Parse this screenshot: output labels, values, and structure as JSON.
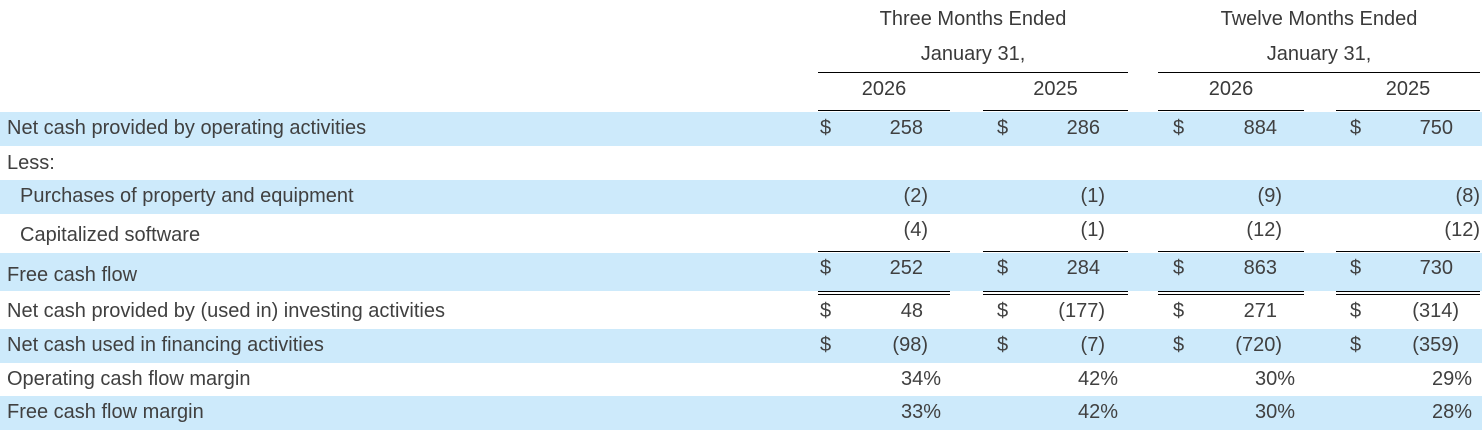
{
  "header": {
    "group1_line1": "Three Months Ended",
    "group1_line2": "January 31,",
    "group2_line1": "Twelve Months Ended",
    "group2_line2": "January 31,",
    "years": [
      "2026",
      "2025",
      "2026",
      "2025"
    ]
  },
  "rows": [
    {
      "label": "Net cash provided by operating activities",
      "cur": [
        "$",
        "$",
        "$",
        "$"
      ],
      "vals": [
        "258",
        "286",
        "884",
        "750"
      ]
    },
    {
      "label": "Less:",
      "cur": [
        "",
        "",
        "",
        ""
      ],
      "vals": [
        "",
        "",
        "",
        ""
      ]
    },
    {
      "label": "Purchases of property and equipment",
      "cur": [
        "",
        "",
        "",
        ""
      ],
      "vals": [
        "(2)",
        "(1)",
        "(9)",
        "(8)"
      ]
    },
    {
      "label": "Capitalized software",
      "cur": [
        "",
        "",
        "",
        ""
      ],
      "vals": [
        "(4)",
        "(1)",
        "(12)",
        "(12)"
      ]
    },
    {
      "label": "Free cash flow",
      "cur": [
        "$",
        "$",
        "$",
        "$"
      ],
      "vals": [
        "252",
        "284",
        "863",
        "730"
      ]
    },
    {
      "label": "Net cash provided by (used in) investing activities",
      "cur": [
        "$",
        "$",
        "$",
        "$"
      ],
      "vals": [
        "48",
        "(177)",
        "271",
        "(314)"
      ]
    },
    {
      "label": "Net cash used in financing activities",
      "cur": [
        "$",
        "$",
        "$",
        "$"
      ],
      "vals": [
        "(98)",
        "(7)",
        "(720)",
        "(359)"
      ]
    },
    {
      "label": "Operating cash flow margin",
      "cur": [
        "",
        "",
        "",
        ""
      ],
      "vals": [
        "34%",
        "42%",
        "30%",
        "29%"
      ]
    },
    {
      "label": "Free cash flow margin",
      "cur": [
        "",
        "",
        "",
        ""
      ],
      "vals": [
        "33%",
        "42%",
        "30%",
        "28%"
      ]
    }
  ]
}
